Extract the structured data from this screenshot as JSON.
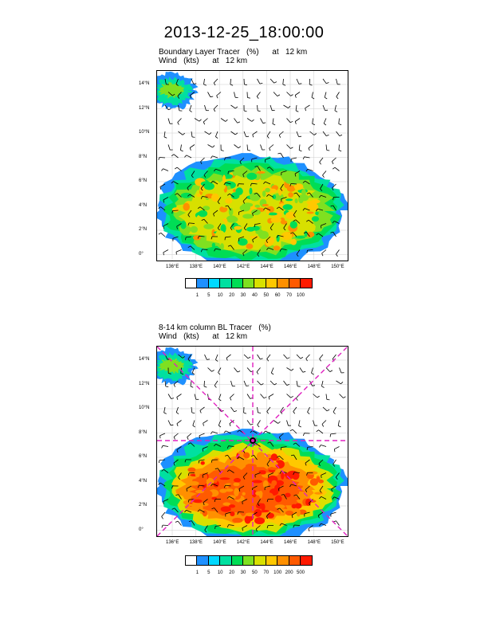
{
  "main_title": "2013-12-25_18:00:00",
  "panel1": {
    "title_line1": "Boundary Layer Tracer   (%)      at   12 km",
    "title_line2": "Wind   (kts)      at   12 km",
    "colorbar_labels": [
      "1",
      "5",
      "10",
      "20",
      "30",
      "40",
      "50",
      "60",
      "70",
      "100"
    ]
  },
  "panel2": {
    "title_line1": "8-14 km column BL Tracer   (%)",
    "title_line2": "Wind   (kts)      at   12 km",
    "colorbar_labels": [
      "1",
      "5",
      "10",
      "20",
      "30",
      "50",
      "70",
      "100",
      "200",
      "500"
    ]
  },
  "lat_labels": [
    "14°N",
    "12°N",
    "10°N",
    "8°N",
    "6°N",
    "4°N",
    "2°N",
    "0°"
  ],
  "lon_labels": [
    "136°E",
    "138°E",
    "140°E",
    "142°E",
    "144°E",
    "146°E",
    "148°E",
    "150°E"
  ],
  "colors": {
    "levels": [
      "#ffffff",
      "#1e90ff",
      "#00d8ff",
      "#00e0a0",
      "#00dd55",
      "#7fe020",
      "#d8e000",
      "#ffc800",
      "#ff9000",
      "#ff5a00",
      "#ff1a00"
    ],
    "track": "#e020c0",
    "wind_barb": "#000000"
  }
}
